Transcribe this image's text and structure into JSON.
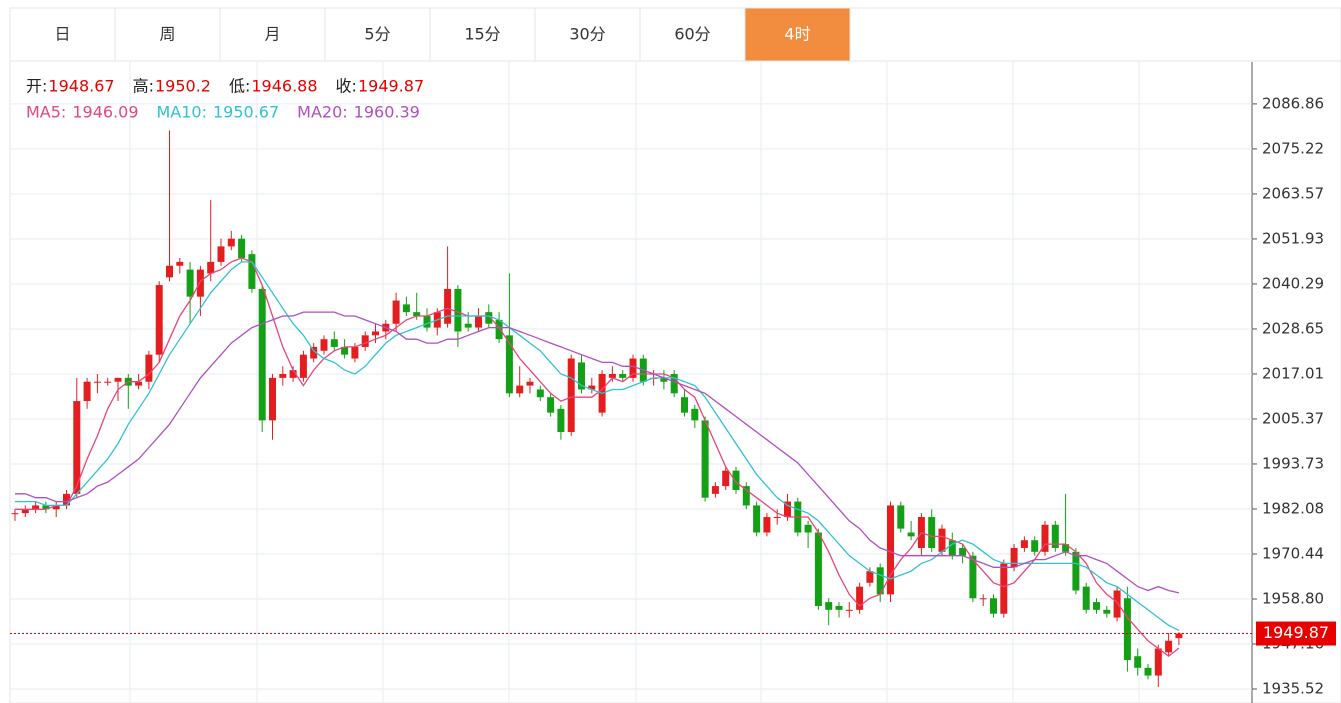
{
  "tabs": {
    "items": [
      "日",
      "周",
      "月",
      "5分",
      "15分",
      "30分",
      "60分",
      "4时"
    ],
    "active": 7
  },
  "chart_data": {
    "type": "candlestick",
    "ohlc_labels": [
      "开:",
      "高:",
      "低:",
      "收:"
    ],
    "up_color": "#e41e1e",
    "down_color": "#14a014",
    "ohlc": [
      [
        1981,
        1982,
        1979,
        1981
      ],
      [
        1981,
        1983,
        1980,
        1982
      ],
      [
        1982,
        1984,
        1981,
        1983
      ],
      [
        1983,
        1984,
        1981,
        1982
      ],
      [
        1982,
        1984,
        1980,
        1983
      ],
      [
        1983,
        1987,
        1982,
        1986
      ],
      [
        1986,
        2016,
        1985,
        2010
      ],
      [
        2010,
        2016,
        2008,
        2015
      ],
      [
        2015,
        2017,
        2012,
        2015
      ],
      [
        2015,
        2016,
        2014,
        2015
      ],
      [
        2015,
        2016,
        2010,
        2016
      ],
      [
        2016,
        2017,
        2008,
        2014
      ],
      [
        2014,
        2017,
        2013,
        2015
      ],
      [
        2015,
        2023,
        2013,
        2022
      ],
      [
        2022,
        2041,
        2020,
        2040
      ],
      [
        2042,
        2080,
        2041,
        2045
      ],
      [
        2045,
        2047,
        2043,
        2046
      ],
      [
        2044,
        2046,
        2030,
        2037
      ],
      [
        2037,
        2045,
        2032,
        2044
      ],
      [
        2043,
        2062,
        2041,
        2046
      ],
      [
        2046,
        2052,
        2045,
        2050
      ],
      [
        2050,
        2054,
        2049,
        2052
      ],
      [
        2052,
        2053,
        2046,
        2047
      ],
      [
        2048,
        2049,
        2038,
        2039
      ],
      [
        2039,
        2040,
        2002,
        2005
      ],
      [
        2005,
        2017,
        2000,
        2016
      ],
      [
        2016,
        2019,
        2014,
        2017
      ],
      [
        2016,
        2019,
        2015,
        2018
      ],
      [
        2016,
        2023,
        2015,
        2022
      ],
      [
        2021,
        2025,
        2020,
        2024
      ],
      [
        2023,
        2027,
        2022,
        2026
      ],
      [
        2026,
        2028,
        2023,
        2024
      ],
      [
        2024,
        2026,
        2021,
        2022
      ],
      [
        2021,
        2025,
        2020,
        2024
      ],
      [
        2024,
        2028,
        2023,
        2027
      ],
      [
        2027,
        2030,
        2025,
        2028
      ],
      [
        2028,
        2031,
        2026,
        2030
      ],
      [
        2030,
        2038,
        2028,
        2036
      ],
      [
        2035,
        2037,
        2032,
        2033
      ],
      [
        2033,
        2038,
        2031,
        2032
      ],
      [
        2032,
        2034,
        2028,
        2029
      ],
      [
        2029,
        2034,
        2027,
        2033
      ],
      [
        2030,
        2050,
        2029,
        2039
      ],
      [
        2039,
        2040,
        2024,
        2028
      ],
      [
        2030,
        2033,
        2028,
        2029
      ],
      [
        2029,
        2034,
        2028,
        2032
      ],
      [
        2033,
        2035,
        2029,
        2030
      ],
      [
        2031,
        2033,
        2025,
        2026
      ],
      [
        2027,
        2043,
        2011,
        2012
      ],
      [
        2012,
        2019,
        2011,
        2014
      ],
      [
        2014,
        2016,
        2012,
        2015
      ],
      [
        2013,
        2014,
        2010,
        2011
      ],
      [
        2011,
        2012,
        2006,
        2007
      ],
      [
        2008,
        2009,
        2000,
        2002
      ],
      [
        2002,
        2022,
        2001,
        2021
      ],
      [
        2020,
        2022,
        2012,
        2013
      ],
      [
        2013,
        2016,
        2012,
        2014
      ],
      [
        2007,
        2018,
        2006,
        2017
      ],
      [
        2016,
        2019,
        2015,
        2017
      ],
      [
        2017,
        2018,
        2015,
        2016
      ],
      [
        2016,
        2022,
        2015,
        2021
      ],
      [
        2021,
        2022,
        2014,
        2015
      ],
      [
        2016,
        2018,
        2014,
        2016
      ],
      [
        2016,
        2018,
        2013,
        2015
      ],
      [
        2017,
        2018,
        2011,
        2012
      ],
      [
        2011,
        2013,
        2006,
        2007
      ],
      [
        2008,
        2009,
        2003,
        2005
      ],
      [
        2005,
        2006,
        1984,
        1985
      ],
      [
        1986,
        1989,
        1985,
        1988
      ],
      [
        1988,
        1993,
        1987,
        1992
      ],
      [
        1992,
        1993,
        1986,
        1987
      ],
      [
        1988,
        1989,
        1982,
        1983
      ],
      [
        1983,
        1984,
        1975,
        1976
      ],
      [
        1976,
        1981,
        1975,
        1980
      ],
      [
        1980,
        1982,
        1978,
        1980
      ],
      [
        1980,
        1986,
        1979,
        1984
      ],
      [
        1984,
        1985,
        1975,
        1976
      ],
      [
        1978,
        1979,
        1972,
        1976
      ],
      [
        1976,
        1977,
        1956,
        1957
      ],
      [
        1958,
        1959,
        1952,
        1956
      ],
      [
        1957,
        1958,
        1954,
        1956
      ],
      [
        1956,
        1958,
        1954,
        1956
      ],
      [
        1956,
        1963,
        1955,
        1962
      ],
      [
        1963,
        1967,
        1962,
        1966
      ],
      [
        1967,
        1968,
        1958,
        1960
      ],
      [
        1960,
        1984,
        1958,
        1983
      ],
      [
        1983,
        1984,
        1976,
        1977
      ],
      [
        1976,
        1979,
        1974,
        1975
      ],
      [
        1972,
        1981,
        1970,
        1980
      ],
      [
        1980,
        1982,
        1971,
        1972
      ],
      [
        1971,
        1978,
        1970,
        1977
      ],
      [
        1974,
        1976,
        1969,
        1970
      ],
      [
        1972,
        1973,
        1968,
        1970
      ],
      [
        1970,
        1971,
        1958,
        1959
      ],
      [
        1959,
        1960,
        1957,
        1959
      ],
      [
        1959,
        1960,
        1954,
        1955
      ],
      [
        1955,
        1969,
        1954,
        1968
      ],
      [
        1967,
        1973,
        1966,
        1972
      ],
      [
        1972,
        1975,
        1971,
        1974
      ],
      [
        1974,
        1975,
        1970,
        1971
      ],
      [
        1971,
        1979,
        1970,
        1978
      ],
      [
        1978,
        1979,
        1971,
        1972
      ],
      [
        1973,
        1986,
        1970,
        1971
      ],
      [
        1971,
        1972,
        1960,
        1961
      ],
      [
        1962,
        1963,
        1955,
        1956
      ],
      [
        1958,
        1959,
        1955,
        1956
      ],
      [
        1956,
        1957,
        1954,
        1955
      ],
      [
        1954,
        1962,
        1953,
        1961
      ],
      [
        1959,
        1962,
        1940,
        1943
      ],
      [
        1944,
        1946,
        1939,
        1941
      ],
      [
        1941,
        1942,
        1938,
        1939
      ],
      [
        1939,
        1947,
        1936,
        1946
      ],
      [
        1945,
        1950,
        1944,
        1948
      ],
      [
        1948.67,
        1950.2,
        1946.88,
        1949.87
      ]
    ],
    "series": [
      {
        "name": "MA5:",
        "color": "#e8457a",
        "values": [
          1982,
          1982,
          1982,
          1982,
          1983,
          1983,
          1988,
          1995,
          2001,
          2008,
          2013,
          2015,
          2015,
          2017,
          2020,
          2026,
          2032,
          2036,
          2041,
          2043,
          2044,
          2046,
          2047,
          2046,
          2040,
          2032,
          2024,
          2018,
          2014,
          2018,
          2021,
          2023,
          2024,
          2024,
          2025,
          2026,
          2027,
          2029,
          2031,
          2032,
          2032,
          2033,
          2034,
          2033,
          2032,
          2032,
          2032,
          2029,
          2025,
          2021,
          2018,
          2015,
          2012,
          2010,
          2011,
          2011,
          2011,
          2013,
          2016,
          2015,
          2017,
          2017,
          2017,
          2017,
          2016,
          2013,
          2011,
          2005,
          1999,
          1993,
          1989,
          1987,
          1985,
          1983,
          1981,
          1980,
          1980,
          1980,
          1976,
          1971,
          1965,
          1960,
          1957,
          1959,
          1960,
          1965,
          1969,
          1972,
          1976,
          1975,
          1975,
          1974,
          1973,
          1969,
          1966,
          1963,
          1962,
          1963,
          1966,
          1969,
          1973,
          1973,
          1973,
          1971,
          1968,
          1963,
          1960,
          1958,
          1954,
          1951,
          1948,
          1946,
          1944,
          1946.09
        ]
      },
      {
        "name": "MA10:",
        "color": "#2ec3d3",
        "values": [
          1984,
          1984,
          1984,
          1983,
          1983,
          1983,
          1986,
          1989,
          1992,
          1995,
          1999,
          2004,
          2008,
          2012,
          2017,
          2022,
          2026,
          2030,
          2034,
          2038,
          2041,
          2044,
          2046,
          2046,
          2042,
          2038,
          2034,
          2030,
          2027,
          2023,
          2021,
          2020,
          2018,
          2017,
          2019,
          2022,
          2025,
          2027,
          2028,
          2029,
          2030,
          2031,
          2032,
          2032,
          2032,
          2032,
          2032,
          2031,
          2029,
          2027,
          2025,
          2023,
          2020,
          2017,
          2016,
          2014,
          2013,
          2012,
          2013,
          2013,
          2014,
          2015,
          2016,
          2016,
          2016,
          2015,
          2014,
          2011,
          2007,
          2003,
          1999,
          1995,
          1991,
          1988,
          1985,
          1983,
          1982,
          1981,
          1979,
          1976,
          1973,
          1970,
          1968,
          1966,
          1965,
          1964,
          1965,
          1966,
          1968,
          1969,
          1971,
          1973,
          1974,
          1973,
          1971,
          1969,
          1968,
          1968,
          1968,
          1968,
          1968,
          1968,
          1968,
          1968,
          1967,
          1965,
          1963,
          1962,
          1960,
          1958,
          1956,
          1954,
          1952,
          1950.67
        ]
      },
      {
        "name": "MA20:",
        "color": "#b04fc0",
        "values": [
          1986,
          1986,
          1985,
          1985,
          1984,
          1984,
          1985,
          1986,
          1988,
          1989,
          1991,
          1993,
          1995,
          1998,
          2001,
          2004,
          2008,
          2012,
          2016,
          2019,
          2022,
          2025,
          2027,
          2029,
          2030,
          2031,
          2032,
          2032,
          2033,
          2033,
          2033,
          2033,
          2032,
          2032,
          2031,
          2030,
          2029,
          2028,
          2026,
          2026,
          2025,
          2025,
          2026,
          2026,
          2027,
          2028,
          2029,
          2029,
          2029,
          2028,
          2027,
          2026,
          2025,
          2024,
          2023,
          2022,
          2021,
          2020,
          2020,
          2019,
          2019,
          2018,
          2017,
          2016,
          2015,
          2014,
          2013,
          2012,
          2010,
          2008,
          2006,
          2004,
          2002,
          2000,
          1998,
          1996,
          1994,
          1991,
          1988,
          1985,
          1982,
          1979,
          1977,
          1974,
          1972,
          1971,
          1970,
          1970,
          1970,
          1970,
          1970,
          1970,
          1970,
          1969,
          1968,
          1967,
          1967,
          1967,
          1968,
          1969,
          1969,
          1970,
          1971,
          1970,
          1970,
          1969,
          1968,
          1966,
          1964,
          1962,
          1961,
          1962,
          1961,
          1960.39
        ]
      }
    ],
    "ylim": [
      1931.9,
      2097.7
    ],
    "yticks": [
      2086.86,
      2075.22,
      2063.57,
      2051.93,
      2040.29,
      2028.65,
      2017.01,
      2005.37,
      1993.73,
      1982.08,
      1970.44,
      {
        "value": 1958.8,
        "label": "1958.80"
      },
      1947.16,
      1935.52
    ],
    "grid": true,
    "last_price_color": "#e60000"
  }
}
